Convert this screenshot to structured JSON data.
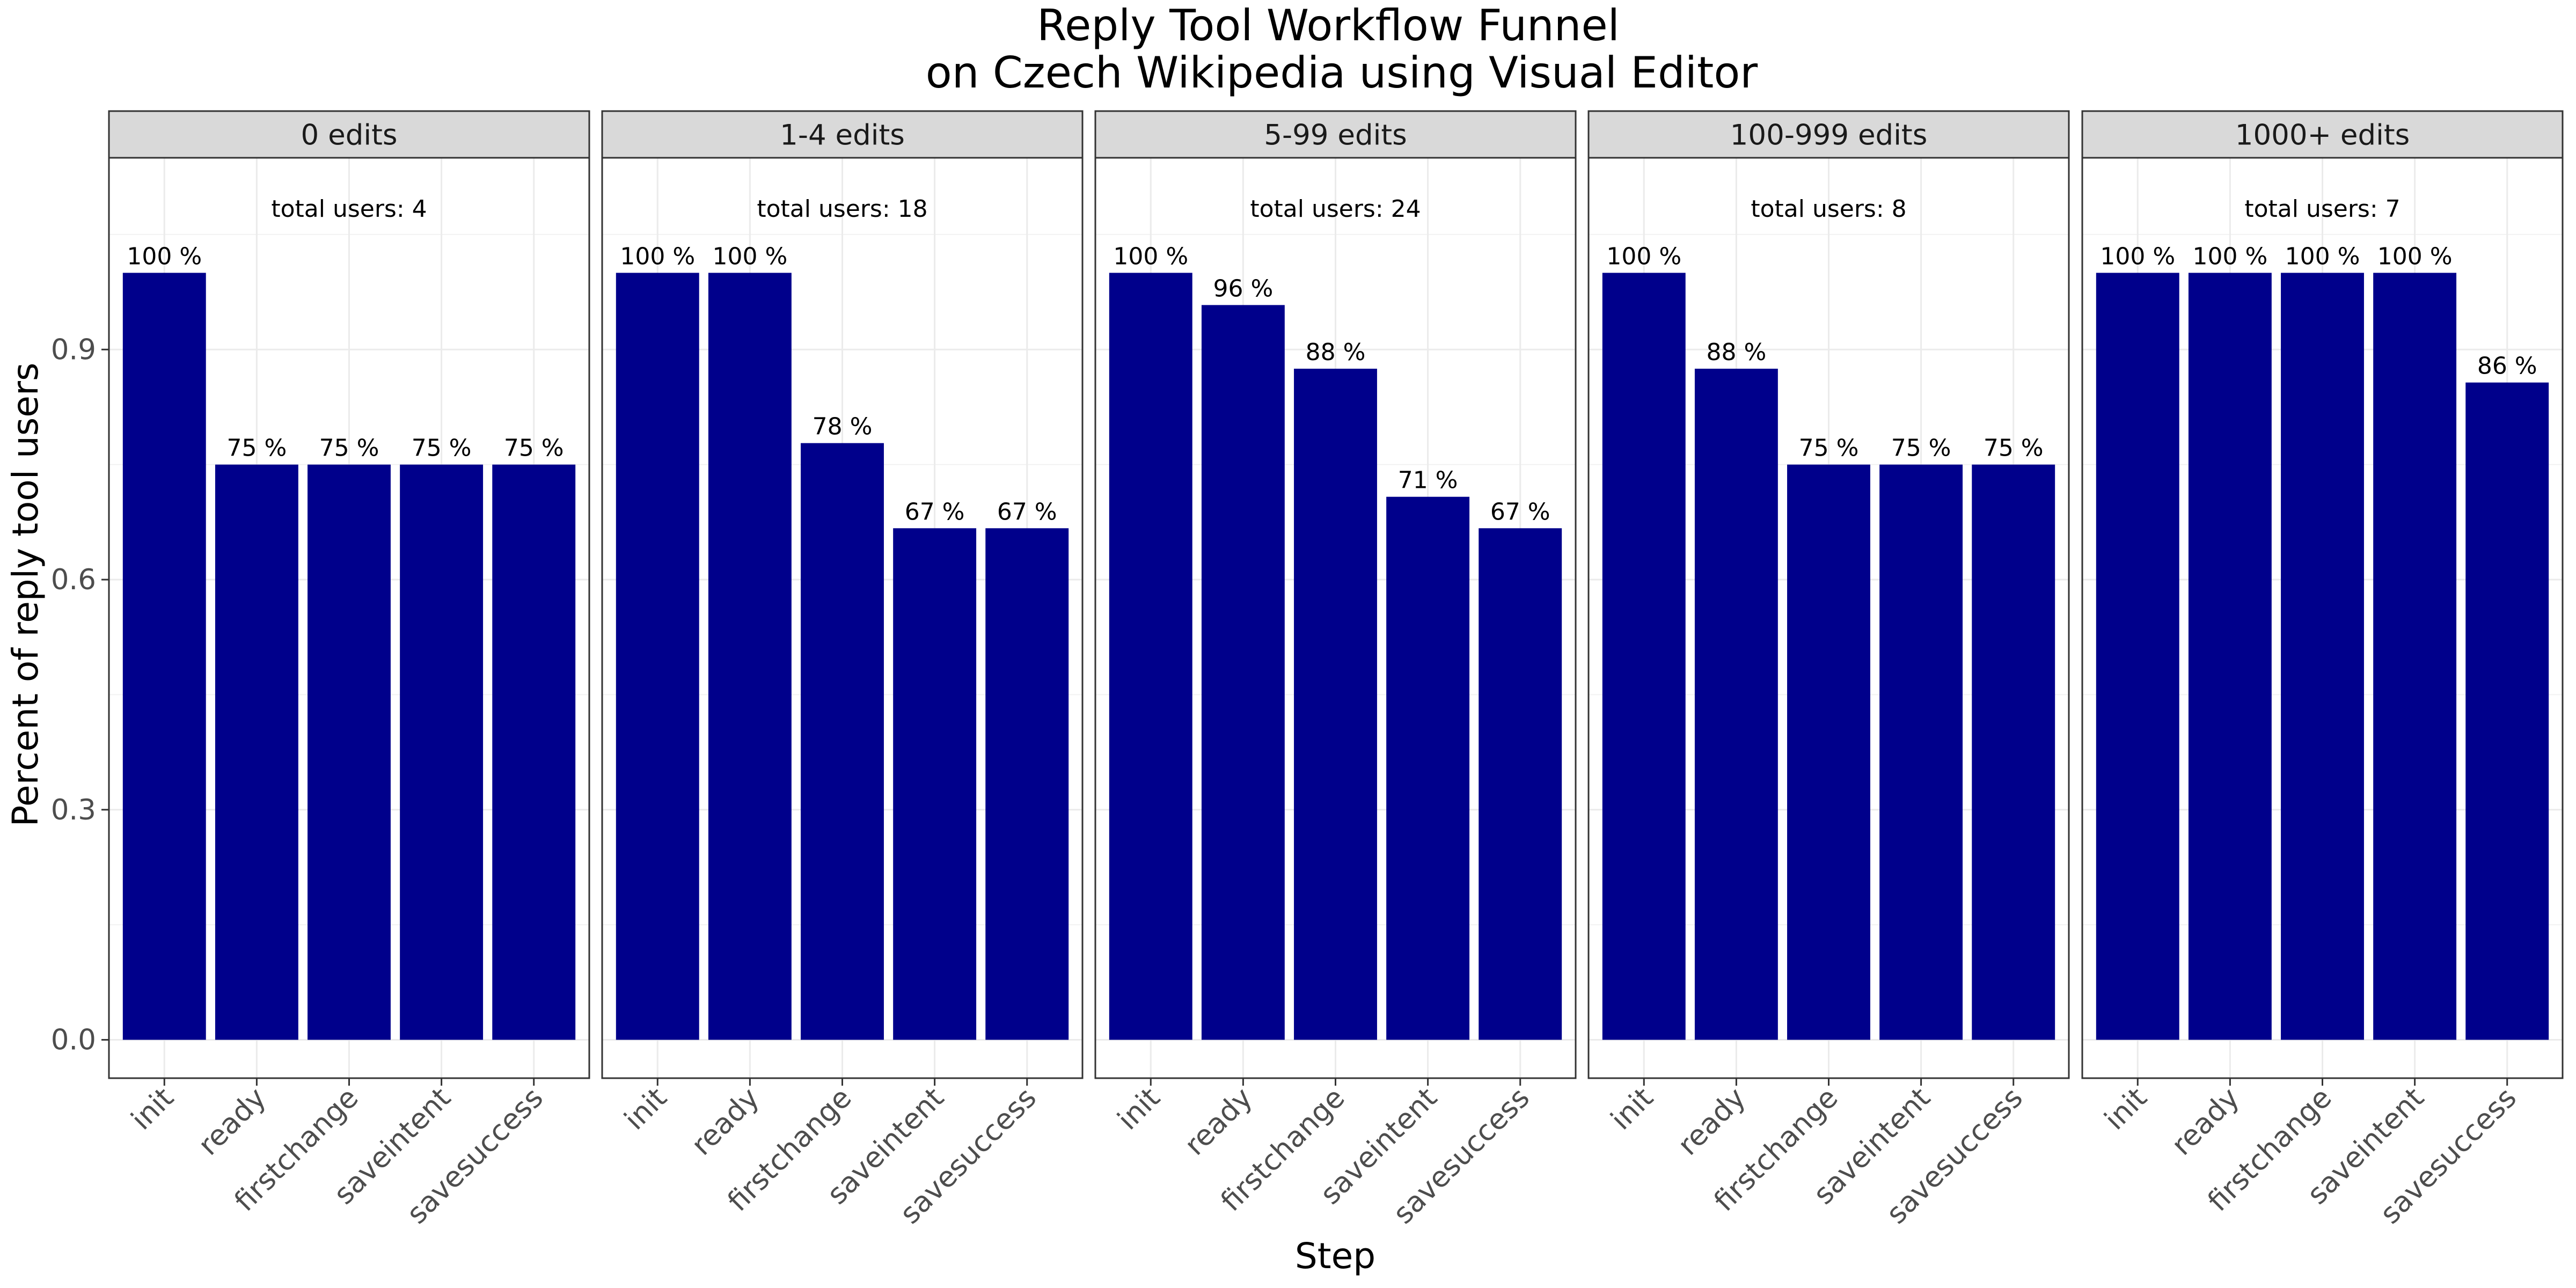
{
  "chart_data": {
    "type": "bar",
    "title": [
      "Reply Tool Workflow Funnel",
      "on Czech Wikipedia using Visual Editor"
    ],
    "xlabel": "Step",
    "ylabel": "Percent of reply tool users",
    "ylim": [
      -0.05,
      1.15
    ],
    "yticks": [
      0.0,
      0.3,
      0.6,
      0.9
    ],
    "ytick_labels": [
      "0.0",
      "0.3",
      "0.6",
      "0.9"
    ],
    "bar_color": "#00008B",
    "strip_color": "#D9D9D9",
    "grid": true,
    "categories": [
      "init",
      "ready",
      "firstchange",
      "saveintent",
      "savesuccess"
    ],
    "panels": [
      {
        "name": "0 edits",
        "total_label": "total users: 4",
        "values": [
          1.0,
          0.75,
          0.75,
          0.75,
          0.75
        ],
        "labels": [
          "100 %",
          "75 %",
          "75 %",
          "75 %",
          "75 %"
        ]
      },
      {
        "name": "1-4 edits",
        "total_label": "total users: 18",
        "values": [
          1.0,
          1.0,
          0.778,
          0.667,
          0.667
        ],
        "labels": [
          "100 %",
          "100 %",
          "78 %",
          "67 %",
          "67 %"
        ]
      },
      {
        "name": "5-99 edits",
        "total_label": "total users: 24",
        "values": [
          1.0,
          0.958,
          0.875,
          0.708,
          0.667
        ],
        "labels": [
          "100 %",
          "96 %",
          "88 %",
          "71 %",
          "67 %"
        ]
      },
      {
        "name": "100-999 edits",
        "total_label": "total users: 8",
        "values": [
          1.0,
          0.875,
          0.75,
          0.75,
          0.75
        ],
        "labels": [
          "100 %",
          "88 %",
          "75 %",
          "75 %",
          "75 %"
        ]
      },
      {
        "name": "1000+ edits",
        "total_label": "total users: 7",
        "values": [
          1.0,
          1.0,
          1.0,
          1.0,
          0.857
        ],
        "labels": [
          "100 %",
          "100 %",
          "100 %",
          "100 %",
          "86 %"
        ]
      }
    ]
  }
}
